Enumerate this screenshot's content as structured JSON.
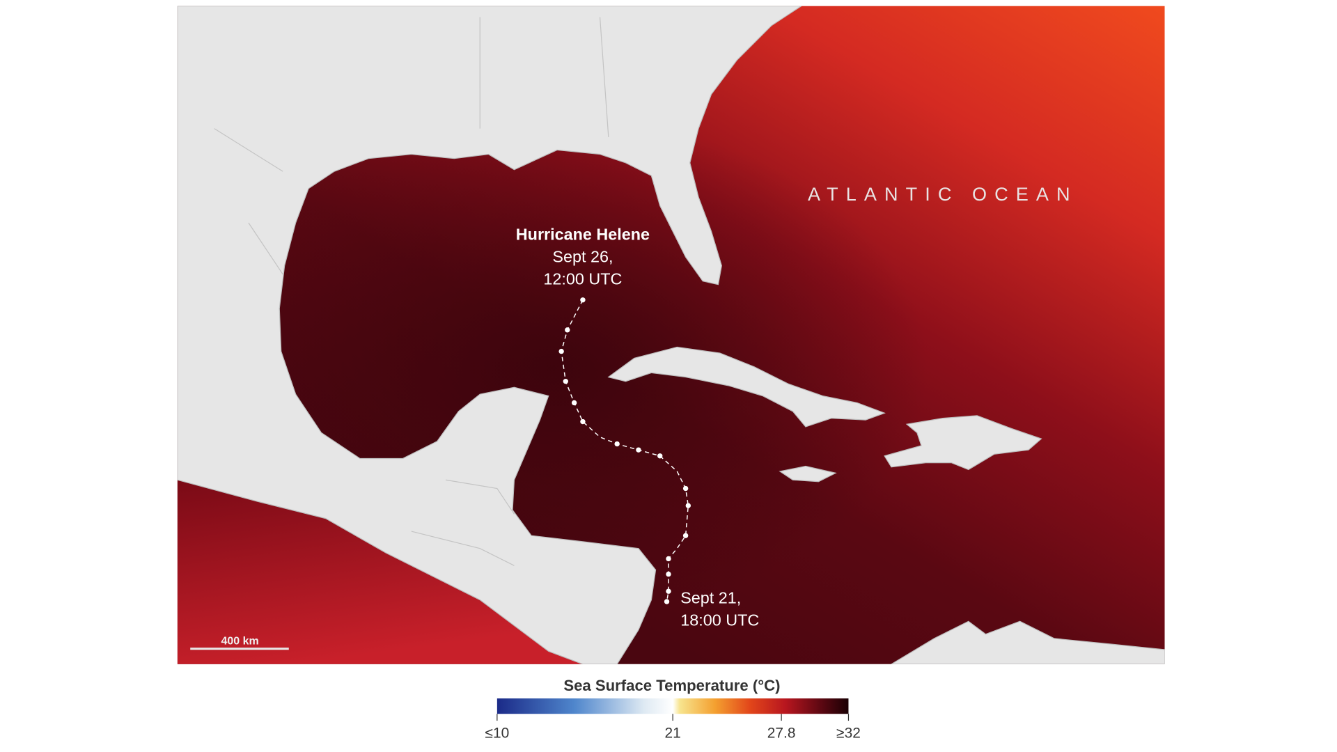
{
  "map": {
    "ocean_label": "ATLANTIC OCEAN",
    "storm": {
      "name": "Hurricane Helene",
      "end_label": [
        "Sept 26,",
        "12:00 UTC"
      ],
      "start_label": [
        "Sept 21,",
        "18:00 UTC"
      ]
    },
    "scale_bar": "400 km"
  },
  "legend": {
    "title": "Sea Surface Temperature (°C)",
    "range": [
      10,
      32
    ],
    "ticks": [
      {
        "value": 10,
        "label": "≤10"
      },
      21,
      27.8,
      {
        "value": 32,
        "label": "≥32"
      }
    ]
  }
}
